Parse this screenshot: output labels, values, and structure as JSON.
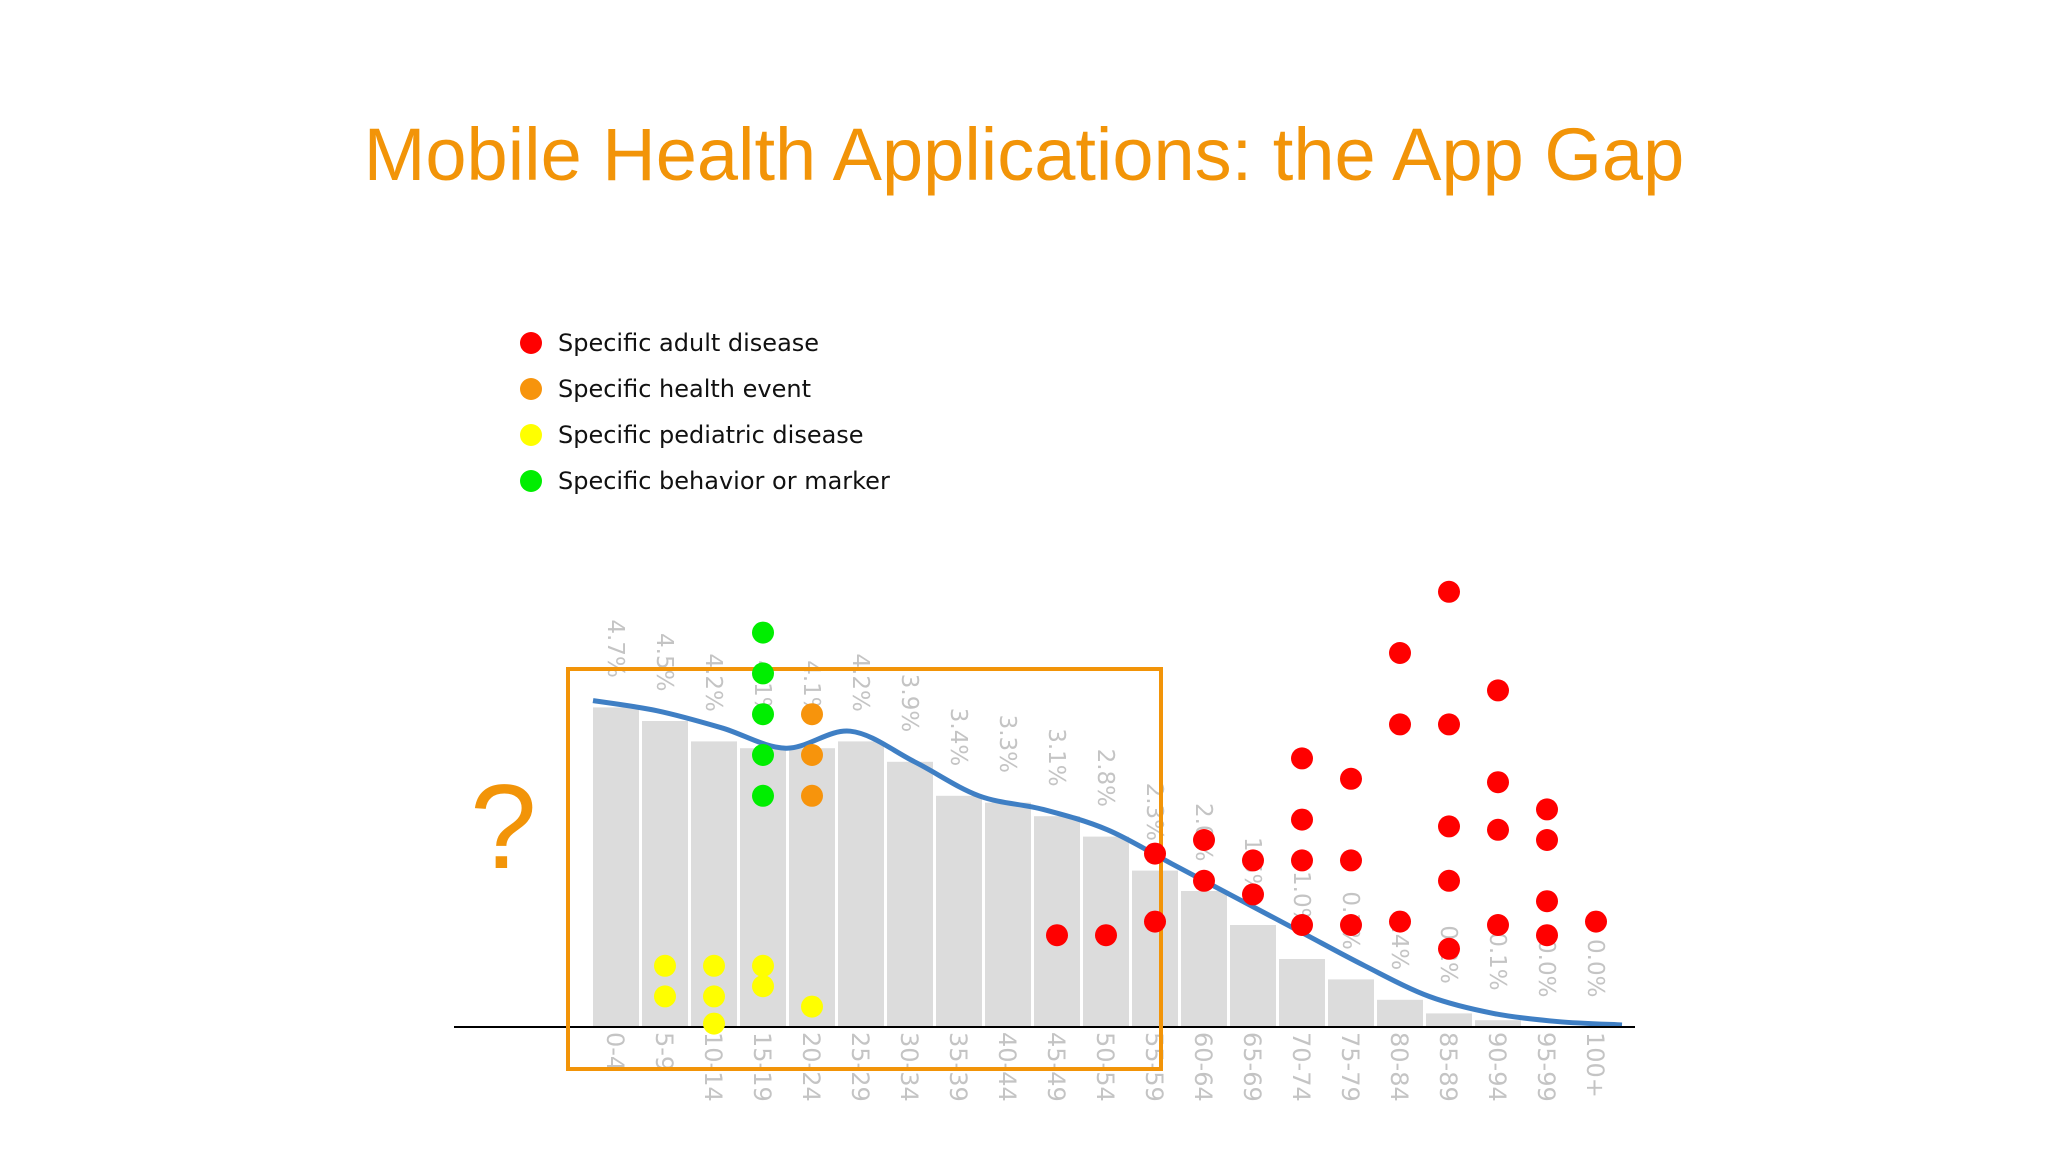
{
  "slide": {
    "title": "Mobile Health Applications: the App Gap",
    "annotation": "?"
  },
  "colors": {
    "title": "#f29408",
    "bars": "#dcdcdc",
    "bar_labels": "#c4c4c4",
    "curve": "#3f7fc4",
    "highlight_box": "#f29408",
    "axis": "#000000"
  },
  "chart_data": {
    "type": "bar",
    "title": "",
    "xlabel": "",
    "ylabel": "",
    "ylim": [
      0,
      5
    ],
    "grid": false,
    "legend_position": "top-left",
    "categories": [
      "0-4",
      "5-9",
      "10-14",
      "15-19",
      "20-24",
      "25-29",
      "30-34",
      "35-39",
      "40-44",
      "45-49",
      "50-54",
      "55-59",
      "60-64",
      "65-69",
      "70-74",
      "75-79",
      "80-84",
      "85-89",
      "90-94",
      "95-99",
      "100+"
    ],
    "values": [
      4.7,
      4.5,
      4.2,
      4.1,
      4.1,
      4.2,
      3.9,
      3.4,
      3.3,
      3.1,
      2.8,
      2.3,
      2.0,
      1.5,
      1.0,
      0.7,
      0.4,
      0.2,
      0.1,
      0.0,
      0.0
    ],
    "value_labels": [
      "4.7%",
      "4.5%",
      "4.2%",
      "4.1%",
      "4.1%",
      "4.2%",
      "3.9%",
      "3.4%",
      "3.3%",
      "3.1%",
      "2.8%",
      "2.3%",
      "2.0%",
      "1.5%",
      "1.0%",
      "0.7%",
      "0.4%",
      "0.2%",
      "0.1%",
      "0.0%",
      "0.0%"
    ],
    "curve": [
      4.8,
      4.65,
      4.4,
      4.1,
      4.35,
      3.9,
      3.4,
      3.2,
      2.9,
      2.4,
      1.9,
      1.4,
      0.9,
      0.45,
      0.2,
      0.08,
      0.03
    ],
    "highlight_range": [
      "0-4",
      "50-54"
    ],
    "legend": [
      {
        "name": "Specific adult disease",
        "color": "#ff0000"
      },
      {
        "name": "Specific health event",
        "color": "#f7940c"
      },
      {
        "name": "Specific pediatric disease",
        "color": "#ffff00"
      },
      {
        "name": "Specific behavior or marker",
        "color": "#00ee00"
      }
    ],
    "scatter_series": [
      {
        "name": "Specific adult disease",
        "points": [
          {
            "x": "45-49",
            "y": 1.35
          },
          {
            "x": "50-54",
            "y": 1.35
          },
          {
            "x": "55-59",
            "y": 1.55
          },
          {
            "x": "55-59",
            "y": 2.55
          },
          {
            "x": "60-64",
            "y": 2.15
          },
          {
            "x": "60-64",
            "y": 2.75
          },
          {
            "x": "65-69",
            "y": 1.95
          },
          {
            "x": "65-69",
            "y": 2.45
          },
          {
            "x": "70-74",
            "y": 1.5
          },
          {
            "x": "70-74",
            "y": 2.45
          },
          {
            "x": "70-74",
            "y": 3.05
          },
          {
            "x": "70-74",
            "y": 3.95
          },
          {
            "x": "75-79",
            "y": 1.5
          },
          {
            "x": "75-79",
            "y": 2.45
          },
          {
            "x": "75-79",
            "y": 3.65
          },
          {
            "x": "80-84",
            "y": 1.55
          },
          {
            "x": "80-84",
            "y": 4.45
          },
          {
            "x": "80-84",
            "y": 5.5
          },
          {
            "x": "85-89",
            "y": 1.15
          },
          {
            "x": "85-89",
            "y": 2.15
          },
          {
            "x": "85-89",
            "y": 2.95
          },
          {
            "x": "85-89",
            "y": 4.45
          },
          {
            "x": "85-89",
            "y": 6.4
          },
          {
            "x": "90-94",
            "y": 1.5
          },
          {
            "x": "90-94",
            "y": 2.9
          },
          {
            "x": "90-94",
            "y": 3.6
          },
          {
            "x": "90-94",
            "y": 4.95
          },
          {
            "x": "95-99",
            "y": 1.35
          },
          {
            "x": "95-99",
            "y": 1.85
          },
          {
            "x": "95-99",
            "y": 2.75
          },
          {
            "x": "95-99",
            "y": 3.2
          },
          {
            "x": "100+",
            "y": 1.55
          }
        ]
      },
      {
        "name": "Specific health event",
        "points": [
          {
            "x": "20-24",
            "y": 3.4
          },
          {
            "x": "20-24",
            "y": 4.0
          },
          {
            "x": "20-24",
            "y": 4.6
          }
        ]
      },
      {
        "name": "Specific pediatric disease",
        "points": [
          {
            "x": "5-9",
            "y": 0.45
          },
          {
            "x": "5-9",
            "y": 0.9
          },
          {
            "x": "10-14",
            "y": 0.05
          },
          {
            "x": "10-14",
            "y": 0.9
          },
          {
            "x": "10-14",
            "y": 0.45
          },
          {
            "x": "15-19",
            "y": 0.9
          },
          {
            "x": "15-19",
            "y": 0.6
          },
          {
            "x": "20-24",
            "y": 0.3
          }
        ]
      },
      {
        "name": "Specific behavior or marker",
        "points": [
          {
            "x": "15-19",
            "y": 3.4
          },
          {
            "x": "15-19",
            "y": 4.0
          },
          {
            "x": "15-19",
            "y": 4.6
          },
          {
            "x": "15-19",
            "y": 5.2
          },
          {
            "x": "15-19",
            "y": 5.8
          }
        ]
      }
    ]
  }
}
